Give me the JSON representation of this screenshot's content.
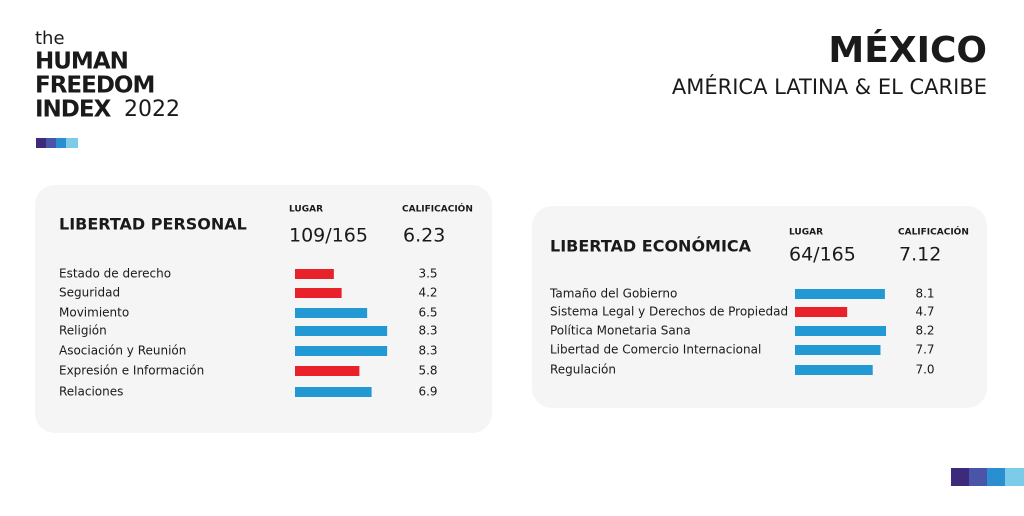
{
  "header": {
    "logo": [
      "the",
      "HUMAN",
      "FREEDOM",
      "INDEX",
      "2022"
    ],
    "country": "MÉXICO",
    "region": "AMÉRICA LATINA & EL CARIBE"
  },
  "chart_data": [
    {
      "type": "bar",
      "orientation": "horizontal",
      "title": "LIBERTAD PERSONAL",
      "rank_label": "LUGAR",
      "rank": "109/165",
      "score_label": "CALIFICACIÓN",
      "score": 6.23,
      "categories": [
        "Estado de derecho",
        "Seguridad",
        "Movimiento",
        "Religión",
        "Asociación y Reunión",
        "Expresión e Información",
        "Relaciones"
      ],
      "values": [
        3.5,
        4.2,
        6.5,
        8.3,
        8.3,
        5.8,
        6.9
      ],
      "colors": [
        "#e8212b",
        "#e8212b",
        "#2299d2",
        "#2299d2",
        "#2299d2",
        "#e8212b",
        "#2299d2"
      ],
      "xlim": [
        0,
        10
      ]
    },
    {
      "type": "bar",
      "orientation": "horizontal",
      "title": "LIBERTAD ECONÓMICA",
      "rank_label": "LUGAR",
      "rank": "64/165",
      "score_label": "CALIFICACIÓN",
      "score": 7.12,
      "categories": [
        "Tamaño del Gobierno",
        "Sistema Legal y Derechos de Propiedad",
        "Política Monetaria Sana",
        "Libertad de Comercio Internacional",
        "Regulación"
      ],
      "values": [
        8.1,
        4.7,
        8.2,
        7.7,
        7
      ],
      "value_labels": [
        "8.1",
        "4.7",
        "8.2",
        "7.7",
        "7.0"
      ],
      "colors": [
        "#2299d2",
        "#e8212b",
        "#2299d2",
        "#2299d2",
        "#2299d2"
      ],
      "xlim": [
        0,
        10
      ]
    }
  ]
}
